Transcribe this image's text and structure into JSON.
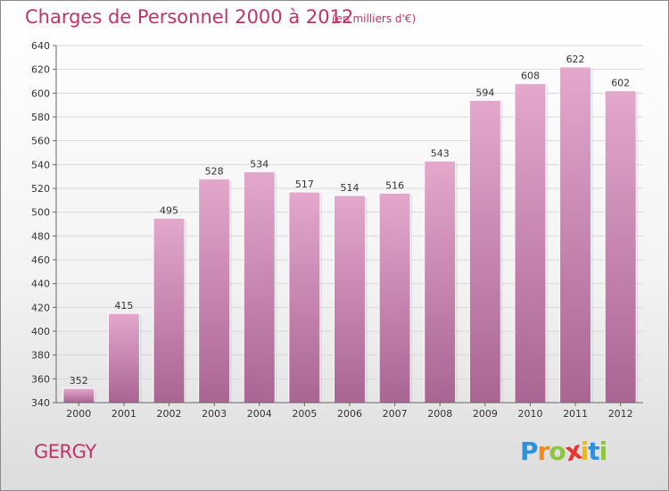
{
  "header": {
    "title": "Charges de Personnel 2000 à 2012",
    "subtitle": "(en milliers d'€)"
  },
  "footer": {
    "commune": "GERGY",
    "logo_letters": [
      "P",
      "r",
      "o",
      "x",
      "i",
      "t",
      "i"
    ],
    "logo_colors": [
      "#2f8fd8",
      "#f08a1c",
      "#8cc63f",
      "#e8352e",
      "#f5b800",
      "#2f8fd8",
      "#8cc63f"
    ]
  },
  "colors": {
    "bar_top": "#e3a8cc",
    "bar_bottom": "#a96593",
    "grid": "#d8d8d8",
    "text": "#333333",
    "accent": "#c0336a"
  },
  "chart_data": {
    "type": "bar",
    "categories": [
      "2000",
      "2001",
      "2002",
      "2003",
      "2004",
      "2005",
      "2006",
      "2007",
      "2008",
      "2009",
      "2010",
      "2011",
      "2012"
    ],
    "values": [
      352,
      415,
      495,
      528,
      534,
      517,
      514,
      516,
      543,
      594,
      608,
      622,
      602
    ],
    "yticks": [
      340,
      360,
      380,
      400,
      420,
      440,
      460,
      480,
      500,
      520,
      540,
      560,
      580,
      600,
      620,
      640
    ],
    "ylim": [
      340,
      640
    ],
    "grid": true,
    "data_labels": true
  }
}
